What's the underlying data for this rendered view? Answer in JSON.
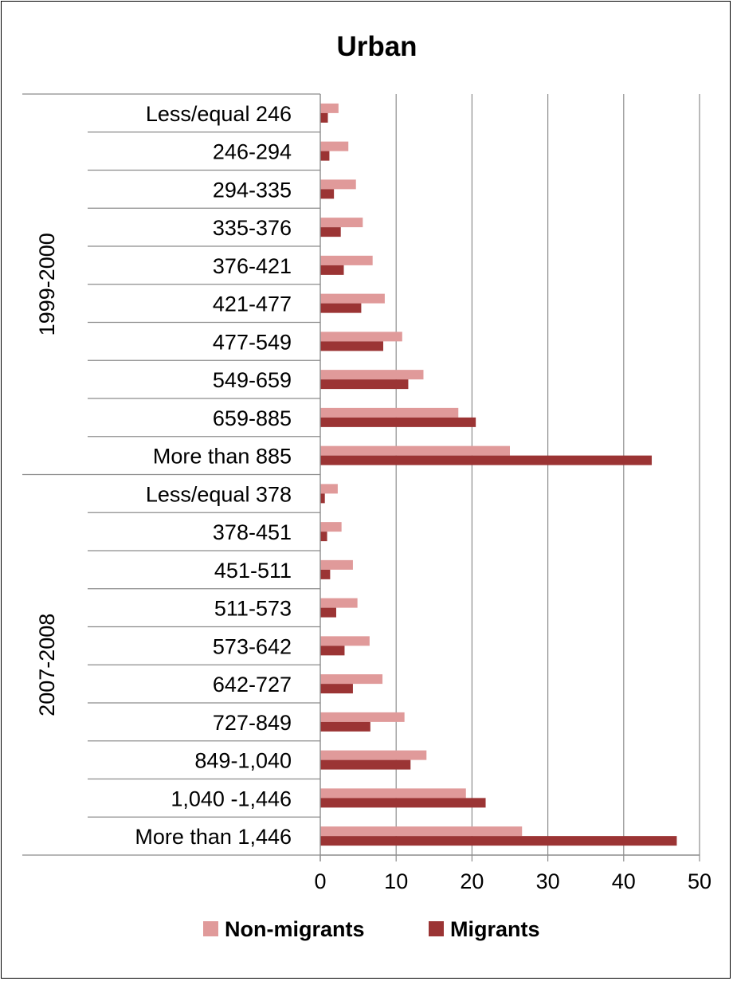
{
  "chart_data": {
    "type": "bar",
    "orientation": "horizontal",
    "title": "Urban",
    "xlim": [
      0,
      50
    ],
    "x_ticks": [
      "0",
      "10",
      "20",
      "30",
      "40",
      "50"
    ],
    "grid": true,
    "legend_position": "bottom",
    "colors": {
      "Non-migrants": "#e09a9a",
      "Migrants": "#9b3434"
    },
    "groups": [
      {
        "label": "1999-2000",
        "categories": [
          "Less/equal 246",
          "246-294",
          "294-335",
          "335-376",
          "376-421",
          "421-477",
          "477-549",
          "549-659",
          "659-885",
          "More than 885"
        ],
        "series": [
          {
            "name": "Non-migrants",
            "values": [
              2.4,
              3.7,
              4.7,
              5.6,
              6.9,
              8.5,
              10.8,
              13.6,
              18.2,
              25.0
            ]
          },
          {
            "name": "Migrants",
            "values": [
              1.0,
              1.2,
              1.8,
              2.7,
              3.1,
              5.4,
              8.3,
              11.6,
              20.5,
              43.7
            ]
          }
        ]
      },
      {
        "label": "2007-2008",
        "categories": [
          "Less/equal 378",
          "378-451",
          "451-511",
          "511-573",
          "573-642",
          "642-727",
          "727-849",
          "849-1,040",
          "1,040 -1,446",
          "More than 1,446"
        ],
        "series": [
          {
            "name": "Non-migrants",
            "values": [
              2.3,
              2.8,
              4.3,
              4.9,
              6.5,
              8.2,
              11.1,
              14.0,
              19.2,
              26.6
            ]
          },
          {
            "name": "Migrants",
            "values": [
              0.6,
              0.9,
              1.3,
              2.1,
              3.2,
              4.3,
              6.6,
              11.9,
              21.8,
              47.0
            ]
          }
        ]
      }
    ],
    "legend": [
      "Non-migrants",
      "Migrants"
    ]
  }
}
